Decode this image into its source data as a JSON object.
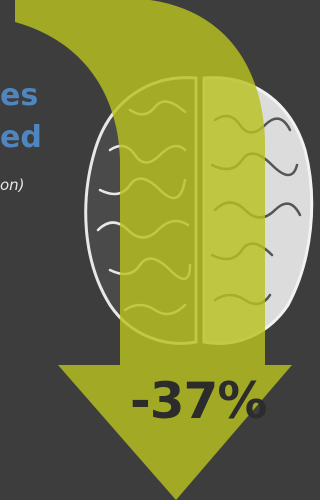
{
  "infographic": {
    "heading_line1": "es",
    "heading_line2": "ed",
    "note": "on)",
    "change": "-37%"
  }
}
